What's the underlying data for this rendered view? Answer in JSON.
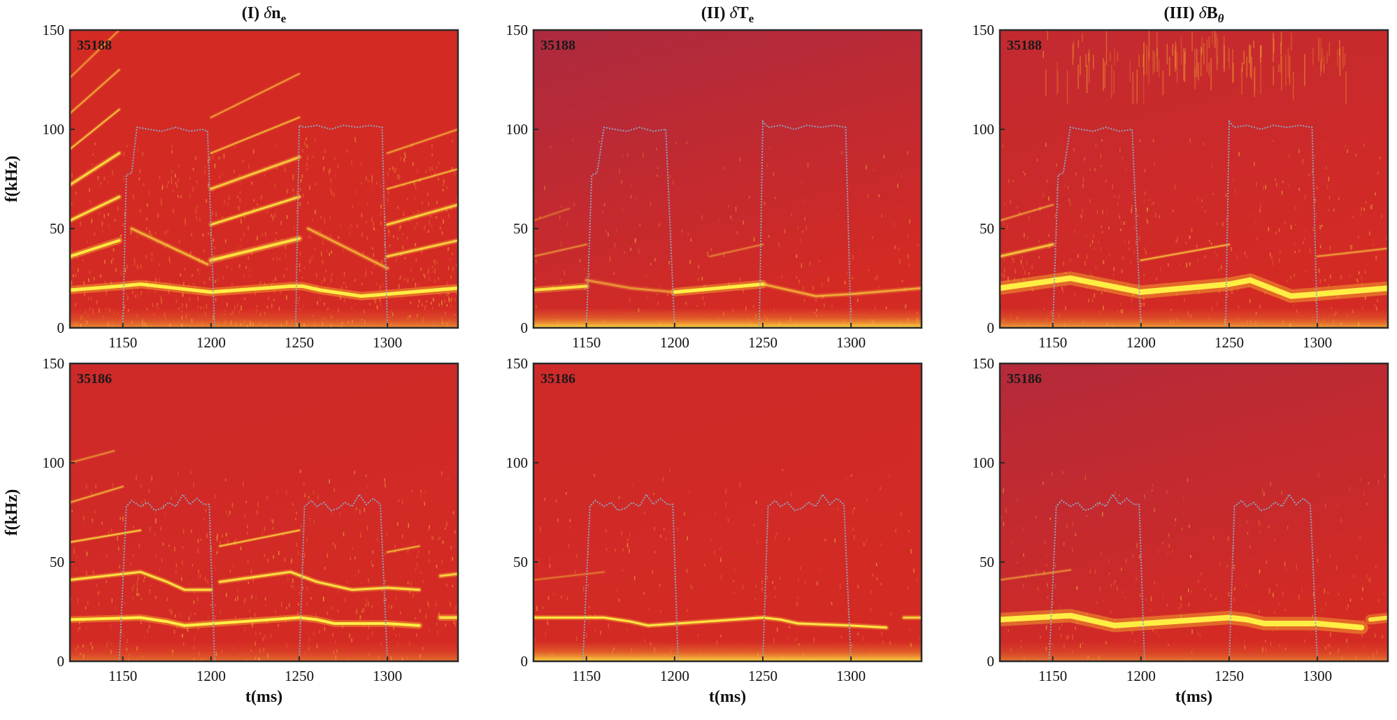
{
  "figure": {
    "columns": [
      {
        "id": "ne",
        "title_prefix": "(I) ",
        "title_greek": "δ",
        "title_main": "n",
        "title_sub": "e",
        "title_sub_italic": false
      },
      {
        "id": "te",
        "title_prefix": "(II) ",
        "title_greek": "δ",
        "title_main": "T",
        "title_sub": "e",
        "title_sub_italic": false
      },
      {
        "id": "bt",
        "title_prefix": "(III) ",
        "title_greek": "δ",
        "title_main": "B",
        "title_sub": "θ",
        "title_sub_italic": true
      }
    ],
    "rows": [
      {
        "shot": "35188"
      },
      {
        "shot": "35186"
      }
    ],
    "ylabel": "f(kHz)",
    "xlabel": "t(ms)"
  },
  "chart_data": {
    "type": "heatmap",
    "description_axes": {
      "x_range_ms": [
        1120,
        1340
      ],
      "y_range_khz": [
        0,
        150
      ],
      "x_ticks": [
        1150,
        1200,
        1250,
        1300
      ],
      "y_ticks": [
        0,
        50,
        100,
        150
      ]
    },
    "colors": {
      "background_red": "#d42a24",
      "purple_tint": "#8c2a55",
      "mode_yellow": "#ffee44",
      "mode_orange": "#f29a2e",
      "overlay_dotted": "#8fa6c2",
      "frame": "#2a2a2a"
    },
    "panels": [
      {
        "row": 0,
        "col": 0,
        "shot": "35188",
        "purple_tint": 0.0,
        "overlay": {
          "t": [
            1150,
            1152,
            1155,
            1158,
            1165,
            1172,
            1180,
            1188,
            1195,
            1198,
            1202,
            1248,
            1250,
            1253,
            1260,
            1268,
            1275,
            1283,
            1290,
            1297,
            1300
          ],
          "f": [
            0,
            77,
            78,
            101,
            100,
            99,
            101,
            99,
            100,
            99,
            0,
            0,
            102,
            101,
            102,
            100,
            102,
            101,
            102,
            101,
            0
          ]
        },
        "modes": [
          {
            "t": [
              1120,
              1148,
              1160,
              1180,
              1200,
              1245,
              1252,
              1262,
              1285,
              1300,
              1340
            ],
            "f": [
              19,
              21,
              22,
              20,
              18,
              21,
              21,
              19,
              16,
              17,
              20
            ],
            "w": 5,
            "i": 1.0
          },
          {
            "t": [
              1120,
              1148
            ],
            "f": [
              36,
              44
            ],
            "w": 4,
            "i": 0.95
          },
          {
            "t": [
              1120,
              1148
            ],
            "f": [
              54,
              66
            ],
            "w": 3,
            "i": 0.9
          },
          {
            "t": [
              1120,
              1148
            ],
            "f": [
              72,
              88
            ],
            "w": 3,
            "i": 0.85
          },
          {
            "t": [
              1120,
              1148
            ],
            "f": [
              90,
              110
            ],
            "w": 2,
            "i": 0.7
          },
          {
            "t": [
              1120,
              1148
            ],
            "f": [
              108,
              130
            ],
            "w": 2,
            "i": 0.55
          },
          {
            "t": [
              1120,
              1148
            ],
            "f": [
              126,
              150
            ],
            "w": 2,
            "i": 0.45
          },
          {
            "t": [
              1200,
              1250
            ],
            "f": [
              34,
              45
            ],
            "w": 4,
            "i": 0.9
          },
          {
            "t": [
              1200,
              1250
            ],
            "f": [
              52,
              66
            ],
            "w": 3,
            "i": 0.85
          },
          {
            "t": [
              1200,
              1250
            ],
            "f": [
              70,
              86
            ],
            "w": 3,
            "i": 0.75
          },
          {
            "t": [
              1200,
              1250
            ],
            "f": [
              88,
              106
            ],
            "w": 2,
            "i": 0.6
          },
          {
            "t": [
              1200,
              1250
            ],
            "f": [
              106,
              128
            ],
            "w": 2,
            "i": 0.5
          },
          {
            "t": [
              1300,
              1340
            ],
            "f": [
              36,
              44
            ],
            "w": 3,
            "i": 0.8
          },
          {
            "t": [
              1300,
              1340
            ],
            "f": [
              52,
              62
            ],
            "w": 3,
            "i": 0.8
          },
          {
            "t": [
              1300,
              1340
            ],
            "f": [
              70,
              80
            ],
            "w": 2,
            "i": 0.6
          },
          {
            "t": [
              1300,
              1340
            ],
            "f": [
              88,
              100
            ],
            "w": 2,
            "i": 0.5
          },
          {
            "t": [
              1155,
              1198
            ],
            "f": [
              50,
              32
            ],
            "w": 3,
            "i": 0.6
          },
          {
            "t": [
              1255,
              1300
            ],
            "f": [
              50,
              30
            ],
            "w": 3,
            "i": 0.55
          }
        ],
        "noise": 0.55,
        "low_band": 0.5
      },
      {
        "row": 0,
        "col": 1,
        "shot": "35188",
        "purple_tint": 0.55,
        "overlay": {
          "t": [
            1150,
            1153,
            1156,
            1160,
            1166,
            1173,
            1180,
            1188,
            1195,
            1200,
            1248,
            1250,
            1253,
            1260,
            1268,
            1275,
            1283,
            1290,
            1297,
            1300
          ],
          "f": [
            0,
            77,
            78,
            101,
            100,
            99,
            101,
            99,
            100,
            0,
            0,
            104,
            101,
            102,
            100,
            102,
            101,
            102,
            101,
            0
          ]
        },
        "modes": [
          {
            "t": [
              1120,
              1150
            ],
            "f": [
              19,
              21
            ],
            "w": 4,
            "i": 0.9
          },
          {
            "t": [
              1150,
              1175,
              1200
            ],
            "f": [
              24,
              20,
              18
            ],
            "w": 3,
            "i": 0.45
          },
          {
            "t": [
              1200,
              1250
            ],
            "f": [
              18,
              22
            ],
            "w": 5,
            "i": 1.0
          },
          {
            "t": [
              1250,
              1280,
              1300,
              1340
            ],
            "f": [
              22,
              16,
              17,
              20
            ],
            "w": 3,
            "i": 0.55
          },
          {
            "t": [
              1120,
              1150
            ],
            "f": [
              36,
              42
            ],
            "w": 2,
            "i": 0.4
          },
          {
            "t": [
              1220,
              1250
            ],
            "f": [
              36,
              42
            ],
            "w": 2,
            "i": 0.35
          },
          {
            "t": [
              1120,
              1140
            ],
            "f": [
              54,
              60
            ],
            "w": 2,
            "i": 0.25
          }
        ],
        "noise": 0.15,
        "low_band": 0.9
      },
      {
        "row": 0,
        "col": 2,
        "shot": "35188",
        "purple_tint": 0.25,
        "overlay": {
          "t": [
            1150,
            1153,
            1156,
            1160,
            1166,
            1173,
            1180,
            1188,
            1195,
            1200,
            1248,
            1250,
            1253,
            1260,
            1268,
            1275,
            1283,
            1290,
            1297,
            1300
          ],
          "f": [
            0,
            77,
            78,
            101,
            100,
            99,
            101,
            99,
            100,
            0,
            0,
            104,
            101,
            102,
            100,
            102,
            101,
            102,
            101,
            0
          ]
        },
        "modes": [
          {
            "t": [
              1120,
              1160,
              1200,
              1250,
              1262,
              1285,
              1300,
              1340
            ],
            "f": [
              20,
              25,
              18,
              22,
              24,
              16,
              17,
              20
            ],
            "w": 8,
            "i": 1.0
          },
          {
            "t": [
              1120,
              1150
            ],
            "f": [
              36,
              42
            ],
            "w": 3,
            "i": 0.7
          },
          {
            "t": [
              1120,
              1150
            ],
            "f": [
              54,
              62
            ],
            "w": 2,
            "i": 0.45
          },
          {
            "t": [
              1200,
              1250
            ],
            "f": [
              34,
              42
            ],
            "w": 2,
            "i": 0.6
          },
          {
            "t": [
              1300,
              1340
            ],
            "f": [
              36,
              40
            ],
            "w": 2,
            "i": 0.5
          }
        ],
        "noise": 0.3,
        "low_band": 0.6,
        "top_streaks": true
      },
      {
        "row": 1,
        "col": 0,
        "shot": "35186",
        "purple_tint": 0.1,
        "overlay": {
          "t": [
            1148,
            1152,
            1155,
            1160,
            1164,
            1168,
            1172,
            1176,
            1180,
            1184,
            1188,
            1192,
            1196,
            1199,
            1202,
            1250,
            1253,
            1257,
            1260,
            1264,
            1268,
            1272,
            1276,
            1280,
            1284,
            1288,
            1292,
            1296,
            1300
          ],
          "f": [
            0,
            78,
            81,
            78,
            80,
            76,
            77,
            80,
            78,
            84,
            79,
            82,
            79,
            79,
            0,
            0,
            78,
            81,
            78,
            80,
            76,
            77,
            80,
            78,
            84,
            79,
            82,
            79,
            0
          ]
        },
        "modes": [
          {
            "t": [
              1120,
              1160,
              1175,
              1185,
              1250,
              1260,
              1270,
              1300,
              1318
            ],
            "f": [
              21,
              22,
              20,
              18,
              22,
              21,
              19,
              19,
              18
            ],
            "w": 4,
            "i": 1.0
          },
          {
            "t": [
              1330,
              1340
            ],
            "f": [
              22,
              22
            ],
            "w": 4,
            "i": 0.9
          },
          {
            "t": [
              1120,
              1160,
              1175,
              1185,
              1200
            ],
            "f": [
              41,
              45,
              40,
              36,
              36
            ],
            "w": 3,
            "i": 0.9
          },
          {
            "t": [
              1205,
              1245,
              1260,
              1280,
              1300,
              1318
            ],
            "f": [
              40,
              45,
              40,
              36,
              37,
              36
            ],
            "w": 3,
            "i": 0.9
          },
          {
            "t": [
              1330,
              1340
            ],
            "f": [
              43,
              44
            ],
            "w": 3,
            "i": 0.8
          },
          {
            "t": [
              1120,
              1160
            ],
            "f": [
              60,
              66
            ],
            "w": 2,
            "i": 0.75
          },
          {
            "t": [
              1205,
              1250
            ],
            "f": [
              58,
              66
            ],
            "w": 2,
            "i": 0.7
          },
          {
            "t": [
              1300,
              1318
            ],
            "f": [
              55,
              58
            ],
            "w": 2,
            "i": 0.6
          },
          {
            "t": [
              1120,
              1150
            ],
            "f": [
              80,
              88
            ],
            "w": 2,
            "i": 0.55
          },
          {
            "t": [
              1120,
              1145
            ],
            "f": [
              100,
              106
            ],
            "w": 2,
            "i": 0.4
          }
        ],
        "noise": 0.35,
        "low_band": 0.35
      },
      {
        "row": 1,
        "col": 1,
        "shot": "35186",
        "purple_tint": 0.1,
        "overlay": {
          "t": [
            1148,
            1152,
            1155,
            1160,
            1164,
            1168,
            1172,
            1176,
            1180,
            1184,
            1188,
            1192,
            1196,
            1199,
            1202,
            1250,
            1253,
            1257,
            1260,
            1264,
            1268,
            1272,
            1276,
            1280,
            1284,
            1288,
            1292,
            1296,
            1300
          ],
          "f": [
            0,
            78,
            81,
            78,
            80,
            76,
            77,
            80,
            78,
            84,
            79,
            82,
            79,
            79,
            0,
            0,
            78,
            81,
            78,
            80,
            76,
            77,
            80,
            78,
            84,
            79,
            82,
            79,
            0
          ]
        },
        "modes": [
          {
            "t": [
              1120,
              1160,
              1175,
              1185,
              1250,
              1260,
              1270,
              1300,
              1320
            ],
            "f": [
              22,
              22,
              20,
              18,
              22,
              21,
              19,
              18,
              17
            ],
            "w": 3,
            "i": 0.95
          },
          {
            "t": [
              1330,
              1340
            ],
            "f": [
              22,
              22
            ],
            "w": 3,
            "i": 0.8
          },
          {
            "t": [
              1120,
              1160
            ],
            "f": [
              41,
              45
            ],
            "w": 2,
            "i": 0.3
          }
        ],
        "noise": 0.15,
        "low_band": 0.9
      },
      {
        "row": 1,
        "col": 2,
        "shot": "35186",
        "purple_tint": 0.45,
        "overlay": {
          "t": [
            1148,
            1152,
            1155,
            1160,
            1164,
            1168,
            1172,
            1176,
            1180,
            1184,
            1188,
            1192,
            1196,
            1199,
            1202,
            1250,
            1253,
            1257,
            1260,
            1264,
            1268,
            1272,
            1276,
            1280,
            1284,
            1288,
            1292,
            1296,
            1300
          ],
          "f": [
            0,
            78,
            81,
            78,
            80,
            76,
            77,
            80,
            78,
            84,
            79,
            82,
            79,
            79,
            0,
            0,
            78,
            81,
            78,
            80,
            76,
            77,
            80,
            78,
            84,
            79,
            82,
            79,
            0
          ]
        },
        "modes": [
          {
            "t": [
              1120,
              1160,
              1175,
              1185,
              1250,
              1260,
              1270,
              1300,
              1325
            ],
            "f": [
              21,
              23,
              20,
              18,
              22,
              21,
              19,
              19,
              17
            ],
            "w": 8,
            "i": 1.0
          },
          {
            "t": [
              1330,
              1340
            ],
            "f": [
              21,
              22
            ],
            "w": 6,
            "i": 0.9
          },
          {
            "t": [
              1120,
              1160
            ],
            "f": [
              41,
              46
            ],
            "w": 2,
            "i": 0.4
          }
        ],
        "noise": 0.2,
        "low_band": 0.4
      }
    ]
  }
}
